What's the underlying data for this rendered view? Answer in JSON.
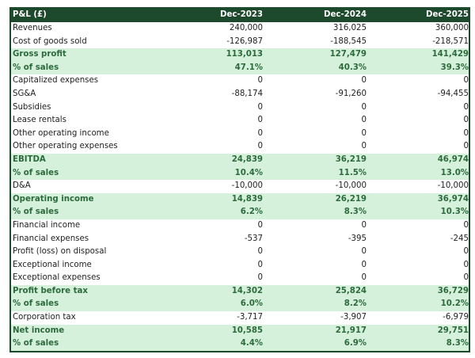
{
  "colors": {
    "header_bg": "#1d4a2c",
    "highlight_bg": "#d5f1dc",
    "highlight_text": "#2d6a3c"
  },
  "header": {
    "label": "P&L (£)",
    "columns": [
      "Dec-2023",
      "Dec-2024",
      "Dec-2025"
    ]
  },
  "rows": [
    {
      "label": "Revenues",
      "values": [
        "240,000",
        "316,025",
        "360,000"
      ],
      "highlight": false
    },
    {
      "label": "Cost of goods sold",
      "values": [
        "-126,987",
        "-188,545",
        "-218,571"
      ],
      "highlight": false
    },
    {
      "label": "Gross profit",
      "values": [
        "113,013",
        "127,479",
        "141,429"
      ],
      "highlight": true
    },
    {
      "label": "% of sales",
      "values": [
        "47.1%",
        "40.3%",
        "39.3%"
      ],
      "highlight": true
    },
    {
      "label": "Capitalized expenses",
      "values": [
        "0",
        "0",
        "0"
      ],
      "highlight": false
    },
    {
      "label": "SG&A",
      "values": [
        "-88,174",
        "-91,260",
        "-94,455"
      ],
      "highlight": false
    },
    {
      "label": "Subsidies",
      "values": [
        "0",
        "0",
        "0"
      ],
      "highlight": false
    },
    {
      "label": "Lease rentals",
      "values": [
        "0",
        "0",
        "0"
      ],
      "highlight": false
    },
    {
      "label": "Other operating income",
      "values": [
        "0",
        "0",
        "0"
      ],
      "highlight": false
    },
    {
      "label": "Other operating expenses",
      "values": [
        "0",
        "0",
        "0"
      ],
      "highlight": false
    },
    {
      "label": "EBITDA",
      "values": [
        "24,839",
        "36,219",
        "46,974"
      ],
      "highlight": true
    },
    {
      "label": "% of sales",
      "values": [
        "10.4%",
        "11.5%",
        "13.0%"
      ],
      "highlight": true
    },
    {
      "label": "D&A",
      "values": [
        "-10,000",
        "-10,000",
        "-10,000"
      ],
      "highlight": false
    },
    {
      "label": "Operating income",
      "values": [
        "14,839",
        "26,219",
        "36,974"
      ],
      "highlight": true
    },
    {
      "label": "% of sales",
      "values": [
        "6.2%",
        "8.3%",
        "10.3%"
      ],
      "highlight": true
    },
    {
      "label": "Financial income",
      "values": [
        "0",
        "0",
        "0"
      ],
      "highlight": false
    },
    {
      "label": "Financial expenses",
      "values": [
        "-537",
        "-395",
        "-245"
      ],
      "highlight": false
    },
    {
      "label": "Profit (loss) on disposal",
      "values": [
        "0",
        "0",
        "0"
      ],
      "highlight": false
    },
    {
      "label": "Exceptional income",
      "values": [
        "0",
        "0",
        "0"
      ],
      "highlight": false
    },
    {
      "label": "Exceptional expenses",
      "values": [
        "0",
        "0",
        "0"
      ],
      "highlight": false
    },
    {
      "label": "Profit before tax",
      "values": [
        "14,302",
        "25,824",
        "36,729"
      ],
      "highlight": true
    },
    {
      "label": "% of sales",
      "values": [
        "6.0%",
        "8.2%",
        "10.2%"
      ],
      "highlight": true
    },
    {
      "label": "Corporation tax",
      "values": [
        "-3,717",
        "-3,907",
        "-6,979"
      ],
      "highlight": false
    },
    {
      "label": "Net income",
      "values": [
        "10,585",
        "21,917",
        "29,751"
      ],
      "highlight": true
    },
    {
      "label": "% of sales",
      "values": [
        "4.4%",
        "6.9%",
        "8.3%"
      ],
      "highlight": true
    }
  ]
}
